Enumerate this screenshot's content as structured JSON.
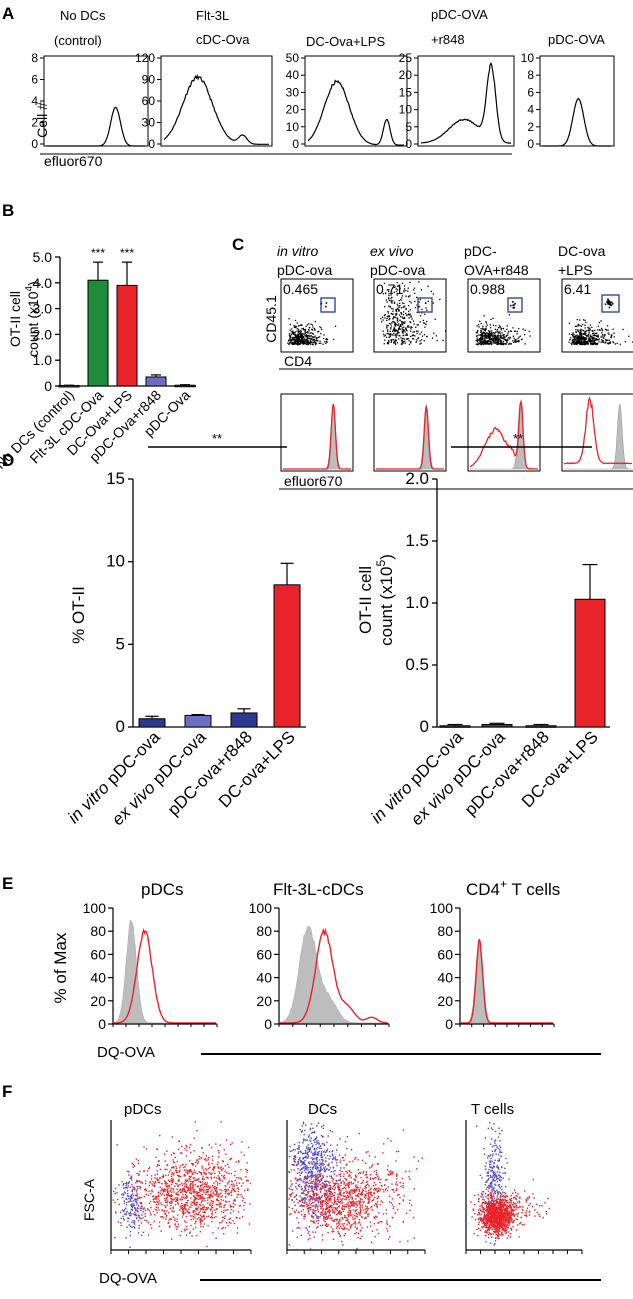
{
  "panel_letters": {
    "a": "A",
    "b": "B",
    "c": "C",
    "d": "D",
    "e": "E",
    "f": "F"
  },
  "panel_a": {
    "ylabel": "Cell #",
    "xlabel": "efluor670",
    "titles": [
      [
        "No DCs",
        "(control)"
      ],
      [
        "Flt-3L",
        "cDC-Ova"
      ],
      [
        "DC-Ova+LPS"
      ],
      [
        "pDC-OVA",
        "+r848"
      ],
      [
        "pDC-OVA"
      ]
    ],
    "ticks": [
      [
        "8",
        "6",
        "4",
        "2",
        "0"
      ],
      [
        "120",
        "90",
        "60",
        "30",
        "0"
      ],
      [
        "50",
        "40",
        "30",
        "20",
        "10",
        "0"
      ],
      [
        "25",
        "20",
        "15",
        "10",
        "5",
        "0"
      ],
      [
        "10",
        "8",
        "6",
        "4",
        "2",
        "0"
      ]
    ]
  },
  "panel_b": {
    "ylabel_line1": "OT-II cell",
    "ylabel_line2": "count (x10",
    "ylabel_sup": "4",
    "ylabel_close": ")",
    "yticks": [
      "5.0",
      "4.0",
      "3.0",
      "2.0",
      "1.0",
      "0"
    ],
    "categories": [
      "No DCs (control)",
      "Flt-3L cDC-Ova",
      "DC-Ova+LPS",
      "pDC-Ova+r848",
      "pDC-Ova"
    ],
    "values": [
      0.02,
      4.1,
      3.9,
      0.35,
      0.03
    ],
    "errors": [
      0.01,
      0.7,
      0.9,
      0.08,
      0.02
    ],
    "colors": [
      "#444444",
      "#1e8c3a",
      "#e8232a",
      "#6a6fc4",
      "#444444"
    ],
    "significance": [
      "",
      "***",
      "***",
      "",
      ""
    ],
    "ylim": [
      0,
      5
    ]
  },
  "panel_c": {
    "titles": [
      {
        "line1": "in vitro",
        "line1_italic": true,
        "line2": "pDC-ova"
      },
      {
        "line1": "ex vivo",
        "line1_italic": true,
        "line2": "pDC-ova"
      },
      {
        "line1": "pDC-",
        "line1_italic": false,
        "line2": "OVA+r848"
      },
      {
        "line1": "DC-ova",
        "line1_italic": false,
        "line2": "+LPS"
      }
    ],
    "gate_values": [
      "0.465",
      "0.71",
      "0.988",
      "6.41"
    ],
    "ylabel": "CD45.1",
    "xlabel": "CD4",
    "hist_xlabel": "efluor670"
  },
  "panel_d_left": {
    "ylabel": "% OT-II",
    "yticks": [
      "15",
      "10",
      "5",
      "0"
    ],
    "categories": [
      "in vitro pDC-ova",
      "ex vivo pDC-ova",
      "pDC-ova+r848",
      "DC-ova+LPS"
    ],
    "label_italic": [
      "in vitro",
      "ex vivo",
      "",
      ""
    ],
    "label_rest": [
      " pDC-ova",
      " pDC-ova",
      "pDC-ova+r848",
      "DC-ova+LPS"
    ],
    "values": [
      0.5,
      0.7,
      0.85,
      8.6
    ],
    "errors": [
      0.15,
      0.05,
      0.25,
      1.3
    ],
    "colors": [
      "#2b3a8f",
      "#6a6fc4",
      "#2b3a8f",
      "#e8232a"
    ],
    "significance": "**",
    "ylim": [
      0,
      15
    ]
  },
  "panel_d_right": {
    "ylabel_line1": "OT-II cell",
    "ylabel_line2": "count (x10",
    "ylabel_sup": "5",
    "ylabel_close": ")",
    "yticks": [
      "2.0",
      "1.5",
      "1.0",
      "0.5",
      "0"
    ],
    "categories": [
      "in vitro pDC-ova",
      "ex vivo pDC-ova",
      "pDC-ova+r848",
      "DC-ova+LPS"
    ],
    "label_italic": [
      "in vitro",
      "ex vivo",
      "",
      ""
    ],
    "label_rest": [
      " pDC-ova",
      " pDC-ova",
      "pDC-ova+r848",
      "DC-ova+LPS"
    ],
    "values": [
      0.01,
      0.02,
      0.01,
      1.03
    ],
    "errors": [
      0.01,
      0.01,
      0.01,
      0.28
    ],
    "colors": [
      "#444444",
      "#444444",
      "#444444",
      "#e8232a"
    ],
    "significance": "**",
    "ylim": [
      0,
      2
    ]
  },
  "panel_e": {
    "titles": [
      "pDCs",
      "Flt-3L-cDCs",
      "CD4"
    ],
    "title3_sup": "+",
    "title3_rest": " T cells",
    "ylabel": "% of Max",
    "xlabel": "DQ-OVA",
    "yticks": [
      "100",
      "80",
      "60",
      "40",
      "20",
      "0"
    ]
  },
  "panel_f": {
    "titles": [
      "pDCs",
      "DCs",
      "T cells"
    ],
    "ylabel": "FSC-A",
    "xlabel": "DQ-OVA"
  },
  "colors": {
    "red": "#e8232a",
    "green": "#1e8c3a",
    "blue": "#6a6fc4",
    "navy": "#2b3a8f",
    "gray": "#bdbdbd",
    "gate": "#2f4aa0"
  },
  "chart_data": [
    {
      "type": "bar",
      "panel": "B",
      "categories": [
        "No DCs (control)",
        "Flt-3L cDC-Ova",
        "DC-Ova+LPS",
        "pDC-Ova+r848",
        "pDC-Ova"
      ],
      "values": [
        0.02,
        4.1,
        3.9,
        0.35,
        0.03
      ],
      "ylabel": "OT-II cell count (x10^4)",
      "ylim": [
        0,
        5
      ]
    },
    {
      "type": "bar",
      "panel": "D-left",
      "categories": [
        "in vitro pDC-ova",
        "ex vivo pDC-ova",
        "pDC-ova+r848",
        "DC-ova+LPS"
      ],
      "values": [
        0.5,
        0.7,
        0.85,
        8.6
      ],
      "ylabel": "% OT-II",
      "ylim": [
        0,
        15
      ]
    },
    {
      "type": "bar",
      "panel": "D-right",
      "categories": [
        "in vitro pDC-ova",
        "ex vivo pDC-ova",
        "pDC-ova+r848",
        "DC-ova+LPS"
      ],
      "values": [
        0.01,
        0.02,
        0.01,
        1.03
      ],
      "ylabel": "OT-II cell count (x10^5)",
      "ylim": [
        0,
        2
      ]
    },
    {
      "type": "scatter",
      "panel": "C",
      "gate_percentages": [
        0.465,
        0.71,
        0.988,
        6.41
      ],
      "xlabel": "CD4",
      "ylabel": "CD45.1"
    }
  ]
}
